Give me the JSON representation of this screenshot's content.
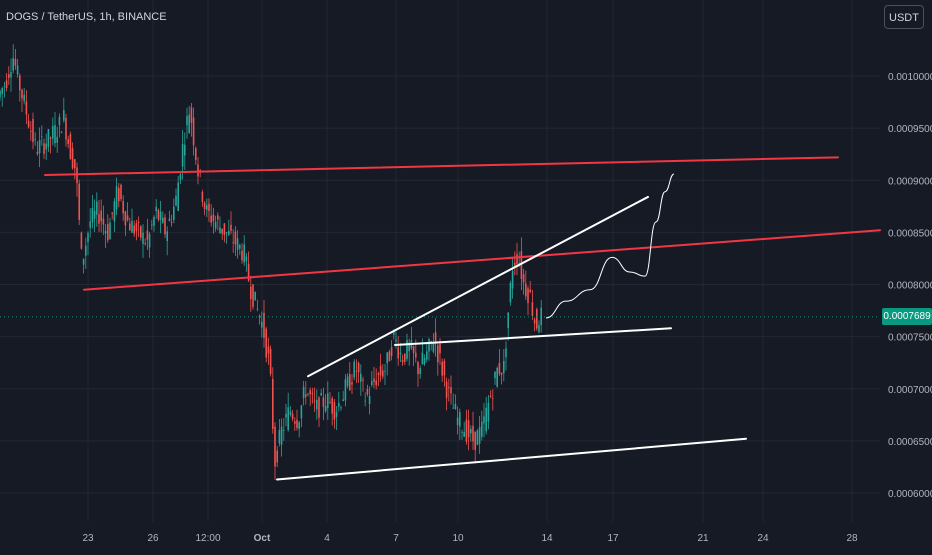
{
  "header": {
    "symbol": "DOGS / TetherUS, 1h, BINANCE",
    "quote_currency": "USDT"
  },
  "colors": {
    "background": "#161a25",
    "grid": "#232734",
    "axis_text": "#b2b5be",
    "candle_up": "#26a69a",
    "candle_down": "#ef5350",
    "red_trendline": "#f23645",
    "white_trendline": "#ffffff",
    "last_price_tag": "#089981"
  },
  "chart_data": {
    "type": "candlestick",
    "x_ticks": [
      "23",
      "26",
      "12:00",
      "Oct",
      "4",
      "7",
      "10",
      "14",
      "17",
      "21",
      "24",
      "28"
    ],
    "y_ticks": [
      "0.0010000",
      "0.0009500",
      "0.0009000",
      "0.0008500",
      "0.0008000",
      "0.0007500",
      "0.0007000",
      "0.0006500",
      "0.0006000"
    ],
    "ylim": [
      0.00058,
      0.00107
    ],
    "last_price": "0.0007689",
    "price_path": [
      [
        0,
        0.00098
      ],
      [
        8,
        0.000995
      ],
      [
        15,
        0.00102
      ],
      [
        22,
        0.00099
      ],
      [
        30,
        0.00096
      ],
      [
        38,
        0.00093
      ],
      [
        45,
        0.000935
      ],
      [
        52,
        0.00094
      ],
      [
        60,
        0.00095
      ],
      [
        66,
        0.00096
      ],
      [
        72,
        0.00093
      ],
      [
        78,
        0.00091
      ],
      [
        84,
        0.00082
      ],
      [
        92,
        0.00086
      ],
      [
        100,
        0.00087
      ],
      [
        110,
        0.00085
      ],
      [
        120,
        0.00089
      ],
      [
        130,
        0.00086
      ],
      [
        140,
        0.00085
      ],
      [
        150,
        0.00084
      ],
      [
        158,
        0.00087
      ],
      [
        168,
        0.00085
      ],
      [
        178,
        0.00088
      ],
      [
        186,
        0.00094
      ],
      [
        192,
        0.00097
      ],
      [
        200,
        0.00091
      ],
      [
        208,
        0.00087
      ],
      [
        218,
        0.00086
      ],
      [
        228,
        0.00085
      ],
      [
        238,
        0.00084
      ],
      [
        246,
        0.00083
      ],
      [
        252,
        0.0008
      ],
      [
        258,
        0.00078
      ],
      [
        265,
        0.00076
      ],
      [
        272,
        0.00072
      ],
      [
        277,
        0.00063
      ],
      [
        284,
        0.00066
      ],
      [
        292,
        0.00068
      ],
      [
        300,
        0.00067
      ],
      [
        308,
        0.0007
      ],
      [
        318,
        0.00068
      ],
      [
        328,
        0.00069
      ],
      [
        338,
        0.00068
      ],
      [
        348,
        0.0007
      ],
      [
        358,
        0.00072
      ],
      [
        368,
        0.00069
      ],
      [
        378,
        0.00071
      ],
      [
        388,
        0.00072
      ],
      [
        396,
        0.00075
      ],
      [
        404,
        0.00073
      ],
      [
        412,
        0.00074
      ],
      [
        420,
        0.00072
      ],
      [
        428,
        0.00073
      ],
      [
        436,
        0.00075
      ],
      [
        444,
        0.00072
      ],
      [
        452,
        0.00069
      ],
      [
        460,
        0.00067
      ],
      [
        468,
        0.00066
      ],
      [
        476,
        0.00065
      ],
      [
        484,
        0.00066
      ],
      [
        492,
        0.00069
      ],
      [
        500,
        0.00072
      ],
      [
        506,
        0.00072
      ],
      [
        510,
        0.00077
      ],
      [
        515,
        0.00082
      ],
      [
        520,
        0.00083
      ],
      [
        526,
        0.0008
      ],
      [
        532,
        0.00079
      ],
      [
        538,
        0.00076
      ],
      [
        542,
        0.00077
      ]
    ],
    "drawings": [
      {
        "name": "red-upper-trendline",
        "color": "red",
        "p1": [
          45,
          0.000905
        ],
        "p2": [
          838,
          0.000922
        ]
      },
      {
        "name": "red-lower-trendline",
        "color": "red",
        "p1": [
          84,
          0.000795
        ],
        "p2": [
          880,
          0.000852
        ]
      },
      {
        "name": "white-channel-upper",
        "color": "white",
        "p1": [
          308,
          0.000712
        ],
        "p2": [
          648,
          0.000884
        ]
      },
      {
        "name": "white-channel-mid",
        "color": "white",
        "p1": [
          395,
          0.000742
        ],
        "p2": [
          671,
          0.000758
        ]
      },
      {
        "name": "white-channel-lower",
        "color": "white",
        "p1": [
          277,
          0.000613
        ],
        "p2": [
          746,
          0.000652
        ]
      }
    ],
    "projection": [
      [
        546,
        0.000768
      ],
      [
        566,
        0.000784
      ],
      [
        590,
        0.000795
      ],
      [
        612,
        0.000826
      ],
      [
        630,
        0.000812
      ],
      [
        645,
        0.000808
      ],
      [
        656,
        0.00086
      ],
      [
        665,
        0.000889
      ],
      [
        674,
        0.000906
      ]
    ]
  }
}
